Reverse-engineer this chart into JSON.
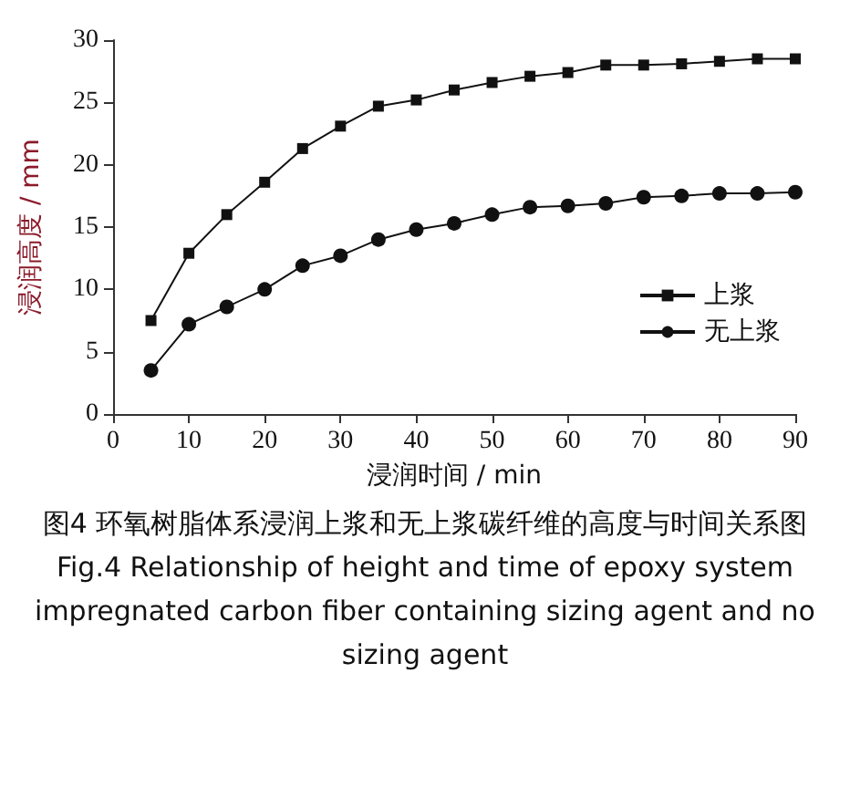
{
  "chart_data": {
    "type": "line",
    "xlabel": "浸润时间 / min",
    "ylabel": "浸润高度 / mm",
    "x": [
      5,
      10,
      15,
      20,
      25,
      30,
      35,
      40,
      45,
      50,
      55,
      60,
      65,
      70,
      75,
      80,
      85,
      90
    ],
    "series": [
      {
        "name": "上浆",
        "color": "#111111",
        "marker": "square",
        "values": [
          7.5,
          12.9,
          16.0,
          18.6,
          21.3,
          23.1,
          24.7,
          25.2,
          26.0,
          26.6,
          27.1,
          27.4,
          28.0,
          28.0,
          28.1,
          28.3,
          28.5,
          28.5
        ]
      },
      {
        "name": "无上浆",
        "color": "#111111",
        "marker": "circle",
        "values": [
          3.5,
          7.2,
          8.6,
          10.0,
          11.9,
          12.7,
          14.0,
          14.8,
          15.3,
          16.0,
          16.6,
          16.7,
          16.9,
          17.4,
          17.5,
          17.7,
          17.7,
          17.8
        ]
      }
    ],
    "xlim": [
      0,
      90
    ],
    "xticks": [
      0,
      10,
      20,
      30,
      40,
      50,
      60,
      70,
      80,
      90
    ],
    "ylim": [
      0,
      30
    ],
    "yticks": [
      0,
      5,
      10,
      15,
      20,
      25,
      30
    ],
    "grid": false,
    "legend": "right",
    "annotations": [
      "图4 环氧树脂体系浸润上浆和无上浆碳纤维的高度与时间关系图",
      "Fig.4 Relationship of height and time of epoxy system impregnated carbon fiber containing sizing agent and no sizing agent"
    ]
  }
}
